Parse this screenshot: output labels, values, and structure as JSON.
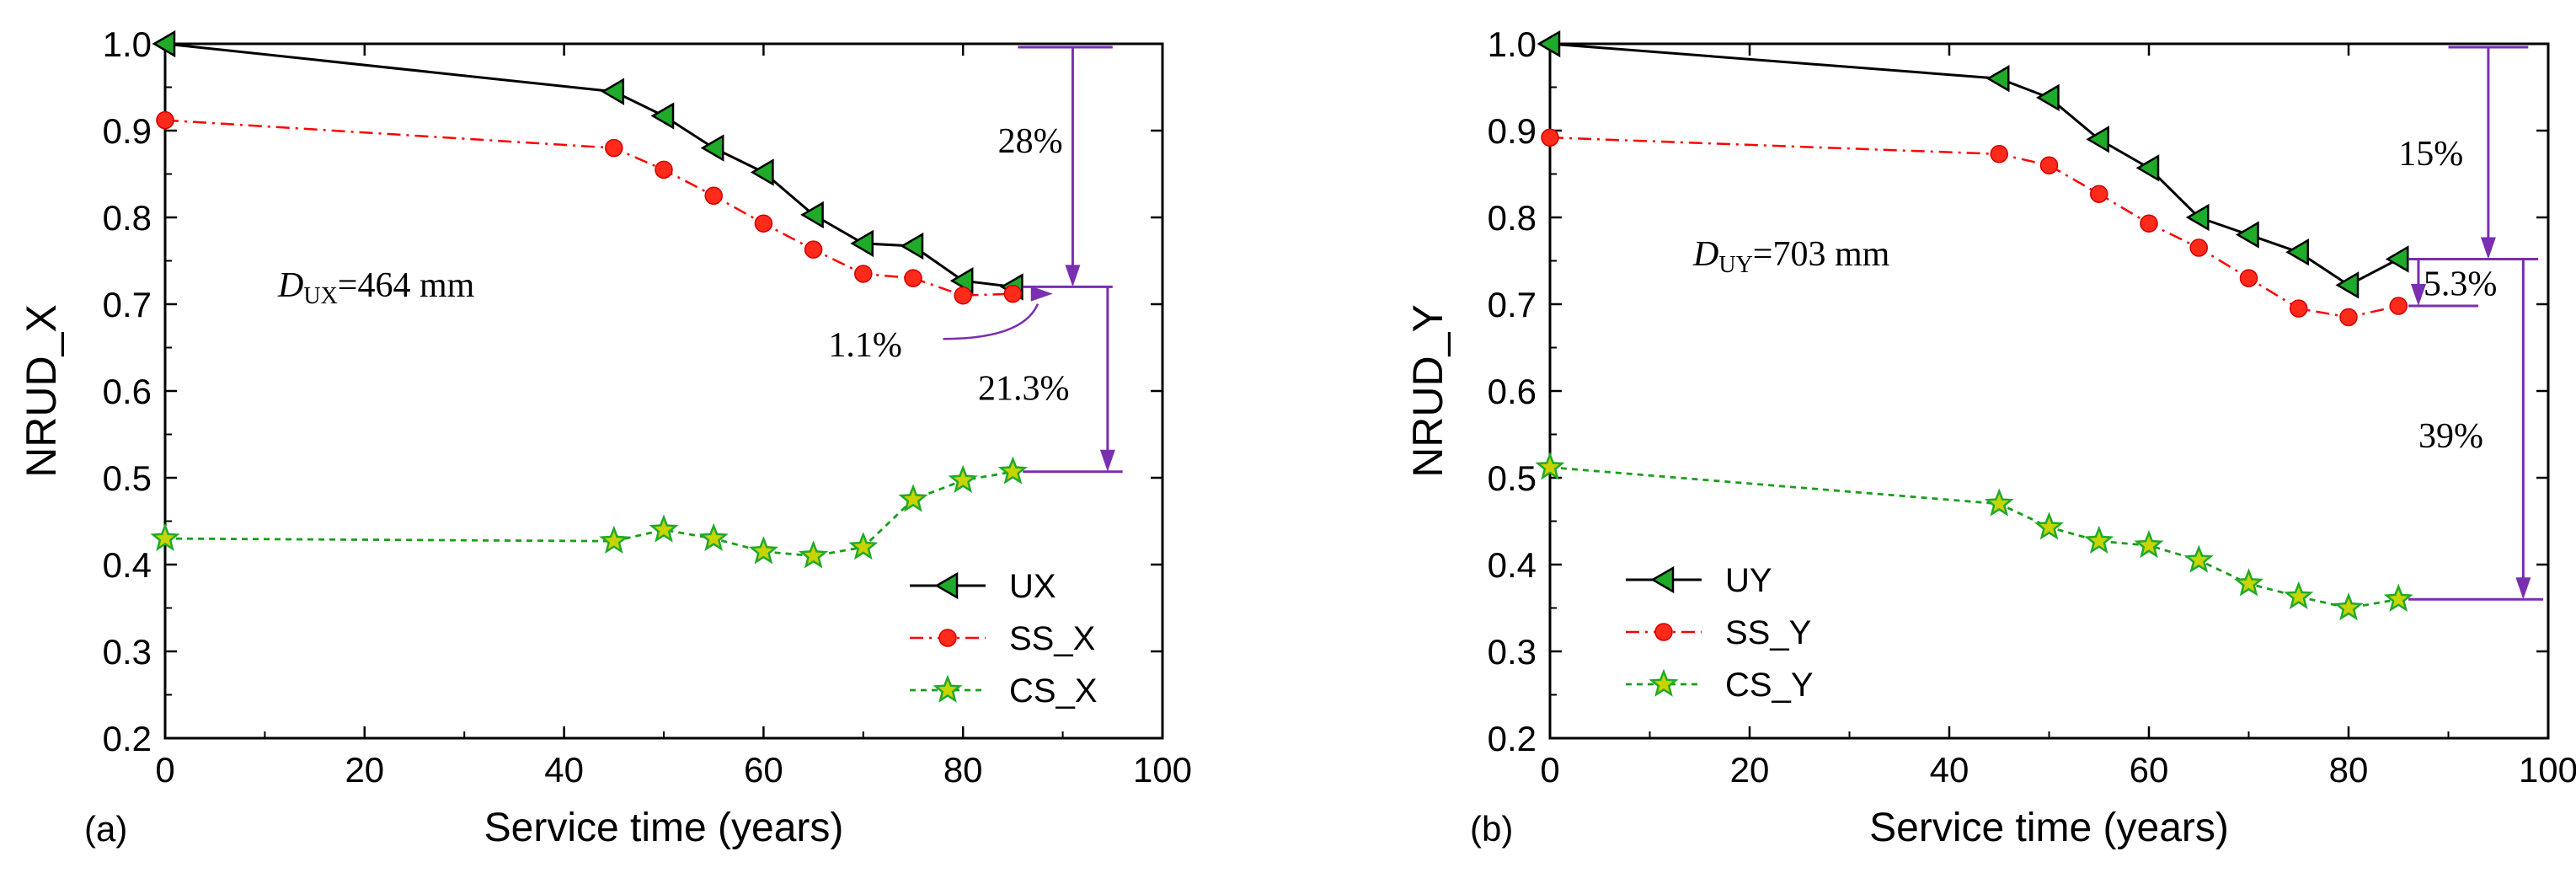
{
  "panels": [
    {
      "id": "a",
      "panel_label": "(a)",
      "annotation": {
        "D": "D",
        "sub": "UX",
        "rest": "=464 mm"
      },
      "pct": [
        "28%",
        "1.1%",
        "21.3%"
      ],
      "colors": {
        "ux": "#000000",
        "ss": "#ff0000",
        "cs": "#1a9e1a",
        "arrow": "#7a2fb0",
        "marker_green": "#1faa2a",
        "marker_yellow": "#c8d400"
      }
    },
    {
      "id": "b",
      "panel_label": "(b)",
      "annotation": {
        "D": "D",
        "sub": "UY",
        "rest": "=703 mm"
      },
      "pct": [
        "15%",
        "5.3%",
        "39%"
      ],
      "colors": {
        "ux": "#000000",
        "ss": "#ff0000",
        "cs": "#1a9e1a",
        "arrow": "#7a2fb0",
        "marker_green": "#1faa2a",
        "marker_yellow": "#c8d400"
      }
    }
  ],
  "chart_data": [
    {
      "type": "line",
      "title": "",
      "xlabel": "Service time (years)",
      "ylabel": "NRUD_X",
      "xlim": [
        0,
        100
      ],
      "ylim": [
        0.2,
        1.0
      ],
      "xticks": [
        "0",
        "20",
        "40",
        "60",
        "80",
        "100"
      ],
      "yticks": [
        "0.2",
        "0.3",
        "0.4",
        "0.5",
        "0.6",
        "0.7",
        "0.8",
        "0.9",
        "1.0"
      ],
      "legend": "bottom-right",
      "series": [
        {
          "name": "UX",
          "style": "solid",
          "marker": "triangle-left",
          "x": [
            0,
            45,
            50,
            55,
            60,
            65,
            70,
            75,
            80,
            85
          ],
          "y": [
            1.0,
            0.945,
            0.917,
            0.88,
            0.852,
            0.803,
            0.77,
            0.767,
            0.727,
            0.72
          ]
        },
        {
          "name": "SS_X",
          "style": "dashdot",
          "marker": "circle",
          "x": [
            0,
            45,
            50,
            55,
            60,
            65,
            70,
            75,
            80,
            85
          ],
          "y": [
            0.912,
            0.88,
            0.855,
            0.825,
            0.793,
            0.763,
            0.735,
            0.73,
            0.71,
            0.712
          ]
        },
        {
          "name": "CS_X",
          "style": "dashed",
          "marker": "star",
          "x": [
            0,
            45,
            50,
            55,
            60,
            65,
            70,
            75,
            80,
            85
          ],
          "y": [
            0.43,
            0.427,
            0.44,
            0.43,
            0.415,
            0.41,
            0.42,
            0.475,
            0.497,
            0.507
          ]
        }
      ]
    },
    {
      "type": "line",
      "title": "",
      "xlabel": "Service time (years)",
      "ylabel": "NRUD_Y",
      "xlim": [
        0,
        100
      ],
      "ylim": [
        0.2,
        1.0
      ],
      "xticks": [
        "0",
        "20",
        "40",
        "60",
        "80",
        "100"
      ],
      "yticks": [
        "0.2",
        "0.3",
        "0.4",
        "0.5",
        "0.6",
        "0.7",
        "0.8",
        "0.9",
        "1.0"
      ],
      "legend": "bottom-left",
      "series": [
        {
          "name": "UY",
          "style": "solid",
          "marker": "triangle-left",
          "x": [
            0,
            45,
            50,
            55,
            60,
            65,
            70,
            75,
            80,
            85
          ],
          "y": [
            1.0,
            0.96,
            0.938,
            0.89,
            0.857,
            0.8,
            0.78,
            0.76,
            0.722,
            0.752
          ]
        },
        {
          "name": "SS_Y",
          "style": "dashdot",
          "marker": "circle",
          "x": [
            0,
            45,
            50,
            55,
            60,
            65,
            70,
            75,
            80,
            85
          ],
          "y": [
            0.892,
            0.873,
            0.86,
            0.827,
            0.793,
            0.765,
            0.73,
            0.695,
            0.685,
            0.698
          ]
        },
        {
          "name": "CS_Y",
          "style": "dashed",
          "marker": "star",
          "x": [
            0,
            45,
            50,
            55,
            60,
            65,
            70,
            75,
            80,
            85
          ],
          "y": [
            0.512,
            0.47,
            0.443,
            0.427,
            0.422,
            0.405,
            0.378,
            0.363,
            0.35,
            0.36
          ]
        }
      ]
    }
  ]
}
